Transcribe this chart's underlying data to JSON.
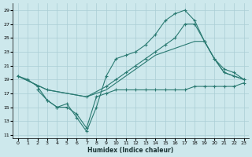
{
  "xlabel": "Humidex (Indice chaleur)",
  "ylabel": "",
  "background_color": "#cde8ec",
  "grid_color": "#aacdd4",
  "line_color": "#2a7a72",
  "xlim": [
    -0.5,
    23.5
  ],
  "ylim": [
    10.5,
    30
  ],
  "xticks": [
    0,
    1,
    2,
    3,
    4,
    5,
    6,
    7,
    8,
    9,
    10,
    11,
    12,
    13,
    14,
    15,
    16,
    17,
    18,
    19,
    20,
    21,
    22,
    23
  ],
  "yticks": [
    11,
    13,
    15,
    17,
    19,
    21,
    23,
    25,
    27,
    29
  ],
  "line1_x": [
    0,
    1,
    2,
    3,
    4,
    5,
    6,
    7,
    8,
    9,
    10,
    11,
    12,
    13,
    14,
    15,
    16,
    17,
    18,
    19,
    20,
    21,
    22,
    23
  ],
  "line1_y": [
    19.5,
    19,
    18,
    16,
    15,
    15.5,
    13.5,
    11.5,
    15,
    19.5,
    22,
    22.5,
    23,
    24,
    25.5,
    27.5,
    28.5,
    29,
    27.5,
    24.5,
    22,
    20,
    19.5,
    19
  ],
  "line2_x": [
    0,
    3,
    7,
    9,
    10,
    11,
    12,
    13,
    14,
    15,
    16,
    17,
    18,
    19,
    20,
    21,
    22,
    23
  ],
  "line2_y": [
    19.5,
    17.5,
    16.5,
    18,
    19,
    20,
    21,
    22,
    23,
    24,
    25,
    27,
    27,
    24.5,
    22,
    20.5,
    20,
    19
  ],
  "line3_x": [
    0,
    3,
    5,
    7,
    9,
    10,
    11,
    12,
    13,
    14,
    15,
    16,
    17,
    18,
    19,
    20,
    21,
    22,
    23
  ],
  "line3_y": [
    19.5,
    17.5,
    17,
    16.5,
    17.5,
    18.5,
    19.5,
    20.5,
    21.5,
    22.5,
    23,
    23.5,
    24,
    24.5,
    24.5,
    22,
    20,
    19.5,
    19
  ],
  "line4_x": [
    2,
    3,
    4,
    5,
    6,
    7,
    8,
    9,
    10,
    11,
    12,
    13,
    14,
    15,
    16,
    17,
    18,
    19,
    20,
    21,
    22,
    23
  ],
  "line4_y": [
    17.5,
    16,
    15,
    15,
    14,
    12,
    16.5,
    17,
    17.5,
    17.5,
    17.5,
    17.5,
    17.5,
    17.5,
    17.5,
    17.5,
    18,
    18,
    18,
    18,
    18,
    18.5
  ]
}
